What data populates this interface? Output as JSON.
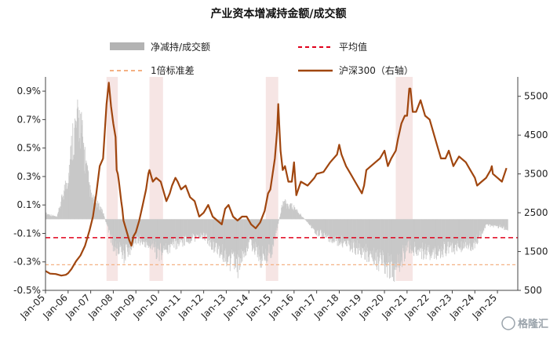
{
  "chart_data": {
    "type": "bar+line",
    "title": "产业资本增减持金额/成交额",
    "x_ticks": [
      "Jan-05",
      "Jan-06",
      "Jan-07",
      "Jan-08",
      "Jan-09",
      "Jan-10",
      "Jan-11",
      "Jan-12",
      "Jan-13",
      "Jan-14",
      "Jan-15",
      "Jan-16",
      "Jan-17",
      "Jan-18",
      "Jan-19",
      "Jan-20",
      "Jan-21",
      "Jan-22",
      "Jan-23",
      "Jan-24",
      "Jan-25"
    ],
    "y_left": {
      "ticks": [
        -0.5,
        -0.3,
        -0.1,
        0.1,
        0.3,
        0.5,
        0.7,
        0.9
      ],
      "tick_labels": [
        "-0.5%",
        "-0.3%",
        "-0.1%",
        "0.1%",
        "0.3%",
        "0.5%",
        "0.7%",
        "0.9%"
      ],
      "range": [
        -0.5,
        1.0
      ]
    },
    "y_right": {
      "ticks": [
        500,
        1500,
        2500,
        3500,
        4500,
        5500
      ],
      "tick_labels": [
        "500",
        "1500",
        "2500",
        "3500",
        "4500",
        "5500"
      ],
      "range": [
        500,
        6000
      ]
    },
    "legend": [
      {
        "label": "净减持/成交额",
        "style": "bar",
        "color": "#b3b3b3"
      },
      {
        "label": "平均值",
        "style": "dashed",
        "color": "#e0001b"
      },
      {
        "label": "1倍标准差",
        "style": "dashed",
        "color": "#f4b183"
      },
      {
        "label": "沪深300（右轴）",
        "style": "line",
        "color": "#a0460f"
      }
    ],
    "mean_line": -0.13,
    "std_line": -0.32,
    "shaded_periods": [
      {
        "start": 2007.7,
        "end": 2008.2
      },
      {
        "start": 2009.6,
        "end": 2010.2
      },
      {
        "start": 2014.75,
        "end": 2015.3
      },
      {
        "start": 2020.5,
        "end": 2021.25
      }
    ],
    "series": [
      {
        "name": "沪深300（右轴）",
        "axis": "right",
        "x": [
          2005.0,
          2005.2,
          2005.45,
          2005.7,
          2005.9,
          2006.0,
          2006.15,
          2006.35,
          2006.55,
          2006.75,
          2006.95,
          2007.1,
          2007.25,
          2007.4,
          2007.55,
          2007.7,
          2007.8,
          2007.9,
          2008.0,
          2008.1,
          2008.15,
          2008.2,
          2008.25,
          2008.35,
          2008.4,
          2008.45,
          2008.55,
          2008.7,
          2008.8,
          2008.9,
          2009.0,
          2009.15,
          2009.3,
          2009.45,
          2009.55,
          2009.6,
          2009.65,
          2009.75,
          2009.9,
          2010.1,
          2010.2,
          2010.35,
          2010.5,
          2010.6,
          2010.75,
          2010.85,
          2011.0,
          2011.2,
          2011.4,
          2011.6,
          2011.8,
          2012.0,
          2012.2,
          2012.4,
          2012.6,
          2012.8,
          2012.95,
          2013.1,
          2013.3,
          2013.5,
          2013.7,
          2013.9,
          2014.1,
          2014.3,
          2014.5,
          2014.7,
          2014.85,
          2014.95,
          2015.05,
          2015.15,
          2015.25,
          2015.3,
          2015.35,
          2015.4,
          2015.5,
          2015.6,
          2015.75,
          2015.9,
          2016.0,
          2016.1,
          2016.3,
          2016.6,
          2016.9,
          2017.0,
          2017.3,
          2017.6,
          2017.9,
          2018.0,
          2018.1,
          2018.3,
          2018.5,
          2018.7,
          2018.9,
          2019.0,
          2019.1,
          2019.2,
          2019.4,
          2019.6,
          2019.8,
          2020.0,
          2020.15,
          2020.3,
          2020.5,
          2020.6,
          2020.75,
          2020.9,
          2021.0,
          2021.1,
          2021.15,
          2021.25,
          2021.4,
          2021.6,
          2021.8,
          2022.0,
          2022.2,
          2022.35,
          2022.5,
          2022.7,
          2022.85,
          2022.95,
          2023.05,
          2023.3,
          2023.6,
          2023.8,
          2024.0,
          2024.1,
          2024.3,
          2024.5,
          2024.7,
          2024.75,
          2024.8,
          2025.0,
          2025.2,
          2025.4
        ],
        "values": [
          1000,
          930,
          920,
          880,
          900,
          940,
          1050,
          1250,
          1400,
          1650,
          2050,
          2400,
          3000,
          3700,
          3900,
          5300,
          5850,
          5250,
          4800,
          4450,
          3600,
          3500,
          3300,
          2800,
          2600,
          2300,
          2100,
          1800,
          1650,
          1900,
          2000,
          2300,
          2700,
          3100,
          3500,
          3600,
          3500,
          3300,
          3400,
          3300,
          3100,
          2800,
          3000,
          3200,
          3400,
          3300,
          3100,
          3200,
          2900,
          2800,
          2400,
          2500,
          2700,
          2400,
          2300,
          2200,
          2600,
          2700,
          2400,
          2300,
          2400,
          2400,
          2200,
          2100,
          2250,
          2550,
          3000,
          3100,
          3500,
          3900,
          4600,
          5300,
          4700,
          4100,
          3600,
          3700,
          3300,
          3300,
          3800,
          2950,
          3300,
          3200,
          3400,
          3500,
          3550,
          3800,
          4000,
          4250,
          4000,
          3700,
          3500,
          3300,
          3100,
          3000,
          3200,
          3600,
          3700,
          3800,
          3900,
          4100,
          3700,
          3900,
          4100,
          4400,
          4800,
          5000,
          5000,
          5700,
          5700,
          5100,
          5100,
          5400,
          5000,
          4900,
          4500,
          4200,
          3900,
          3900,
          4100,
          3900,
          3700,
          3950,
          3800,
          3600,
          3400,
          3200,
          3300,
          3400,
          3600,
          3700,
          3500,
          3400,
          3300,
          3650
        ]
      },
      {
        "name": "净减持/成交额",
        "axis": "left",
        "description_points": [
          {
            "x": 2005.0,
            "y": 0.05
          },
          {
            "x": 2005.5,
            "y": 0.02
          },
          {
            "x": 2006.0,
            "y": 0.4
          },
          {
            "x": 2006.2,
            "y": 0.75
          },
          {
            "x": 2006.5,
            "y": 0.9
          },
          {
            "x": 2006.8,
            "y": 0.45
          },
          {
            "x": 2007.0,
            "y": 0.2
          },
          {
            "x": 2007.5,
            "y": 0.08
          },
          {
            "x": 2008.0,
            "y": -0.25
          },
          {
            "x": 2008.5,
            "y": -0.32
          },
          {
            "x": 2009.0,
            "y": -0.18
          },
          {
            "x": 2009.5,
            "y": -0.22
          },
          {
            "x": 2010.0,
            "y": -0.3
          },
          {
            "x": 2011.0,
            "y": -0.2
          },
          {
            "x": 2012.0,
            "y": -0.15
          },
          {
            "x": 2013.0,
            "y": -0.35
          },
          {
            "x": 2013.5,
            "y": -0.42
          },
          {
            "x": 2014.0,
            "y": -0.2
          },
          {
            "x": 2014.5,
            "y": -0.35
          },
          {
            "x": 2015.0,
            "y": -0.28
          },
          {
            "x": 2015.5,
            "y": 0.15
          },
          {
            "x": 2016.0,
            "y": 0.1
          },
          {
            "x": 2017.0,
            "y": -0.12
          },
          {
            "x": 2018.0,
            "y": -0.2
          },
          {
            "x": 2019.0,
            "y": -0.28
          },
          {
            "x": 2020.0,
            "y": -0.4
          },
          {
            "x": 2020.5,
            "y": -0.45
          },
          {
            "x": 2021.0,
            "y": -0.25
          },
          {
            "x": 2022.0,
            "y": -0.3
          },
          {
            "x": 2023.0,
            "y": -0.25
          },
          {
            "x": 2024.0,
            "y": -0.22
          },
          {
            "x": 2024.5,
            "y": -0.05
          },
          {
            "x": 2025.4,
            "y": -0.08
          }
        ]
      }
    ],
    "watermark": "格隆汇"
  }
}
